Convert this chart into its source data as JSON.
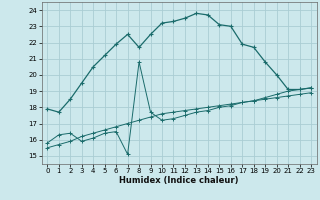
{
  "xlabel": "Humidex (Indice chaleur)",
  "bg_color": "#cce8ec",
  "grid_color": "#aacdd4",
  "line_color": "#1a6b6b",
  "xlim": [
    -0.5,
    23.5
  ],
  "ylim": [
    14.5,
    24.5
  ],
  "xticks": [
    0,
    1,
    2,
    3,
    4,
    5,
    6,
    7,
    8,
    9,
    10,
    11,
    12,
    13,
    14,
    15,
    16,
    17,
    18,
    19,
    20,
    21,
    22,
    23
  ],
  "yticks": [
    15,
    16,
    17,
    18,
    19,
    20,
    21,
    22,
    23,
    24
  ],
  "series1_x": [
    0,
    1,
    2,
    3,
    4,
    5,
    6,
    7,
    8,
    9,
    10,
    11,
    12,
    13,
    14,
    15,
    16,
    17,
    18,
    19,
    20,
    21,
    22,
    23
  ],
  "series1_y": [
    17.9,
    17.7,
    18.5,
    19.5,
    20.5,
    21.2,
    21.9,
    22.5,
    21.7,
    22.5,
    23.2,
    23.3,
    23.5,
    23.8,
    23.7,
    23.1,
    23.0,
    21.9,
    21.7,
    20.8,
    20.0,
    19.1,
    19.1,
    19.2
  ],
  "series2_x": [
    0,
    1,
    2,
    3,
    4,
    5,
    6,
    7,
    8,
    9,
    10,
    11,
    12,
    13,
    14,
    15,
    16,
    17,
    18,
    19,
    20,
    21,
    22,
    23
  ],
  "series2_y": [
    15.8,
    16.3,
    16.4,
    15.9,
    16.1,
    16.4,
    16.5,
    15.1,
    20.8,
    17.7,
    17.2,
    17.3,
    17.5,
    17.7,
    17.8,
    18.0,
    18.1,
    18.3,
    18.4,
    18.6,
    18.8,
    19.0,
    19.1,
    19.2
  ],
  "series3_x": [
    0,
    1,
    2,
    3,
    4,
    5,
    6,
    7,
    8,
    9,
    10,
    11,
    12,
    13,
    14,
    15,
    16,
    17,
    18,
    19,
    20,
    21,
    22,
    23
  ],
  "series3_y": [
    15.5,
    15.7,
    15.9,
    16.2,
    16.4,
    16.6,
    16.8,
    17.0,
    17.2,
    17.4,
    17.6,
    17.7,
    17.8,
    17.9,
    18.0,
    18.1,
    18.2,
    18.3,
    18.4,
    18.5,
    18.6,
    18.7,
    18.8,
    18.9
  ]
}
